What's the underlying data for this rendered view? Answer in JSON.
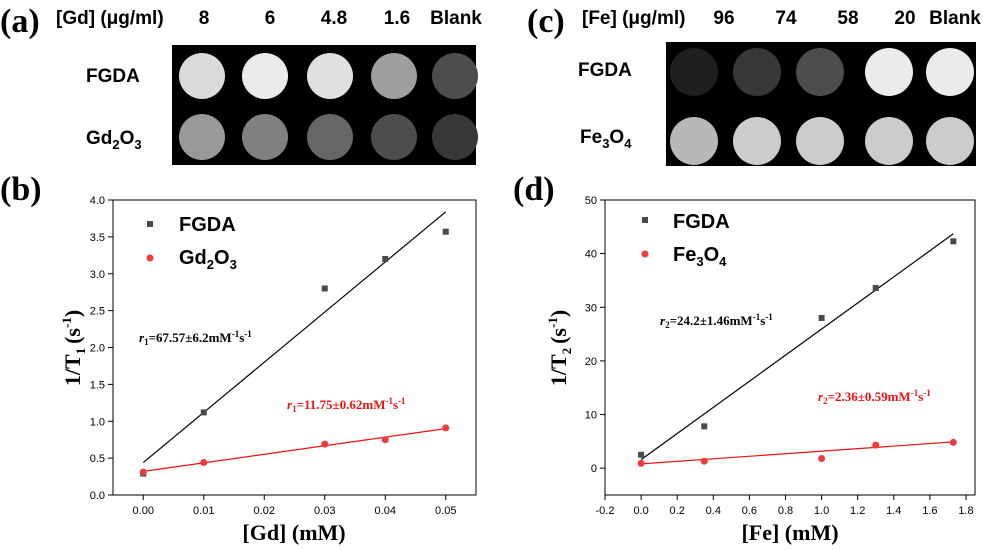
{
  "panels": {
    "a": {
      "label": "(a)",
      "header_label": "[Gd] (μg/ml)",
      "columns": [
        "8",
        "6",
        "4.8",
        "1.6",
        "Blank"
      ],
      "rows": [
        {
          "label_main": "FGDA",
          "label_sub": ""
        },
        {
          "label_main": "Gd",
          "label_sub_1": "2",
          "label_mid": "O",
          "label_sub_2": "3"
        }
      ],
      "intensities": [
        [
          0.86,
          0.92,
          0.88,
          0.62,
          0.3
        ],
        [
          0.6,
          0.5,
          0.4,
          0.3,
          0.22
        ]
      ]
    },
    "c": {
      "label": "(c)",
      "header_label": "[Fe] (μg/ml)",
      "columns": [
        "96",
        "74",
        "58",
        "20",
        "Blank"
      ],
      "rows": [
        {
          "label_main": "FGDA"
        },
        {
          "label_main": "Fe",
          "label_sub_1": "3",
          "label_mid": "O",
          "label_sub_2": "4"
        }
      ],
      "intensities": [
        [
          0.12,
          0.22,
          0.3,
          0.92,
          0.92
        ],
        [
          0.72,
          0.8,
          0.8,
          0.8,
          0.8
        ]
      ]
    }
  },
  "colors": {
    "series_black": "#4a4a4a",
    "series_red": "#ef3b3b",
    "fit_black": "#000000",
    "fit_red": "#ee1111"
  },
  "chart_data": [
    {
      "type": "scatter",
      "label": "(b)",
      "xlabel": "[Gd] (mM)",
      "ylabel_main": "1/T",
      "ylabel_sub": "1",
      "ylabel_unit": "(s",
      "ylabel_sup": "-1",
      "ylabel_close": ")",
      "xlim": [
        -0.005,
        0.055
      ],
      "ylim": [
        0,
        4.0
      ],
      "xticks": [
        "0.00",
        "0.01",
        "0.02",
        "0.03",
        "0.04",
        "0.05"
      ],
      "xtick_values": [
        0,
        0.01,
        0.02,
        0.03,
        0.04,
        0.05
      ],
      "yticks": [
        "0.0",
        "0.5",
        "1.0",
        "1.5",
        "2.0",
        "2.5",
        "3.0",
        "3.5",
        "4.0"
      ],
      "ytick_values": [
        0,
        0.5,
        1.0,
        1.5,
        2.0,
        2.5,
        3.0,
        3.5,
        4.0
      ],
      "series": [
        {
          "name": "FGDA",
          "legend_main": "FGDA",
          "marker": "square",
          "color": "#4a4a4a",
          "x": [
            0,
            0.01,
            0.03,
            0.04,
            0.05
          ],
          "y": [
            0.29,
            1.12,
            2.8,
            3.2,
            3.57
          ],
          "fit": {
            "x": [
              0,
              0.05
            ],
            "y": [
              0.44,
              3.84
            ]
          }
        },
        {
          "name": "Gd2O3",
          "legend_main": "Gd",
          "legend_sub1": "2",
          "legend_mid": "O",
          "legend_sub2": "3",
          "marker": "circle",
          "color": "#ef3b3b",
          "x": [
            0,
            0.01,
            0.03,
            0.04,
            0.05
          ],
          "y": [
            0.31,
            0.44,
            0.69,
            0.75,
            0.91
          ],
          "fit": {
            "x": [
              0,
              0.05
            ],
            "y": [
              0.32,
              0.9
            ]
          }
        }
      ],
      "annotations": [
        {
          "var": "r",
          "sub": "1",
          "text": "=67.57±6.2mM",
          "sup1": "-1",
          "mid": "s",
          "sup2": "-1",
          "color": "#000000"
        },
        {
          "var": "r",
          "sub": "1",
          "text": "=11.75±0.62mM",
          "sup1": "-1",
          "mid": "s",
          "sup2": "-1",
          "color": "#ee1111"
        }
      ]
    },
    {
      "type": "scatter",
      "label": "(d)",
      "xlabel": "[Fe] (mM)",
      "ylabel_main": "1/T",
      "ylabel_sub": "2",
      "ylabel_unit": "(s",
      "ylabel_sup": "-1",
      "ylabel_close": ")",
      "xlim": [
        -0.2,
        1.85
      ],
      "ylim": [
        -5,
        50
      ],
      "xticks": [
        "-0.2",
        "0.0",
        "0.2",
        "0.4",
        "0.6",
        "0.8",
        "1.0",
        "1.2",
        "1.4",
        "1.6",
        "1.8"
      ],
      "xtick_values": [
        -0.2,
        0,
        0.2,
        0.4,
        0.6,
        0.8,
        1.0,
        1.2,
        1.4,
        1.6,
        1.8
      ],
      "yticks": [
        "0",
        "10",
        "20",
        "30",
        "40",
        "50"
      ],
      "ytick_values": [
        0,
        10,
        20,
        30,
        40,
        50
      ],
      "series": [
        {
          "name": "FGDA",
          "legend_main": "FGDA",
          "marker": "square",
          "color": "#4a4a4a",
          "x": [
            0,
            0.35,
            1.0,
            1.3,
            1.73
          ],
          "y": [
            2.5,
            7.8,
            28.0,
            33.6,
            42.3
          ],
          "fit": {
            "x": [
              0,
              1.73
            ],
            "y": [
              1.6,
              43.7
            ]
          }
        },
        {
          "name": "Fe3O4",
          "legend_main": "Fe",
          "legend_sub1": "3",
          "legend_mid": "O",
          "legend_sub2": "4",
          "marker": "circle",
          "color": "#ef3b3b",
          "x": [
            0,
            0.35,
            1.0,
            1.3,
            1.73
          ],
          "y": [
            0.9,
            1.3,
            1.8,
            4.3,
            4.8
          ],
          "fit": {
            "x": [
              0,
              1.73
            ],
            "y": [
              0.8,
              4.9
            ]
          }
        }
      ],
      "annotations": [
        {
          "var": "r",
          "sub": "2",
          "text": "=24.2±1.46mM",
          "sup1": "-1",
          "mid": "s",
          "sup2": "-1",
          "color": "#000000"
        },
        {
          "var": "r",
          "sub": "2",
          "text": "=2.36±0.59mM",
          "sup1": "-1",
          "mid": "s",
          "sup2": "-1",
          "color": "#ee1111"
        }
      ]
    }
  ]
}
